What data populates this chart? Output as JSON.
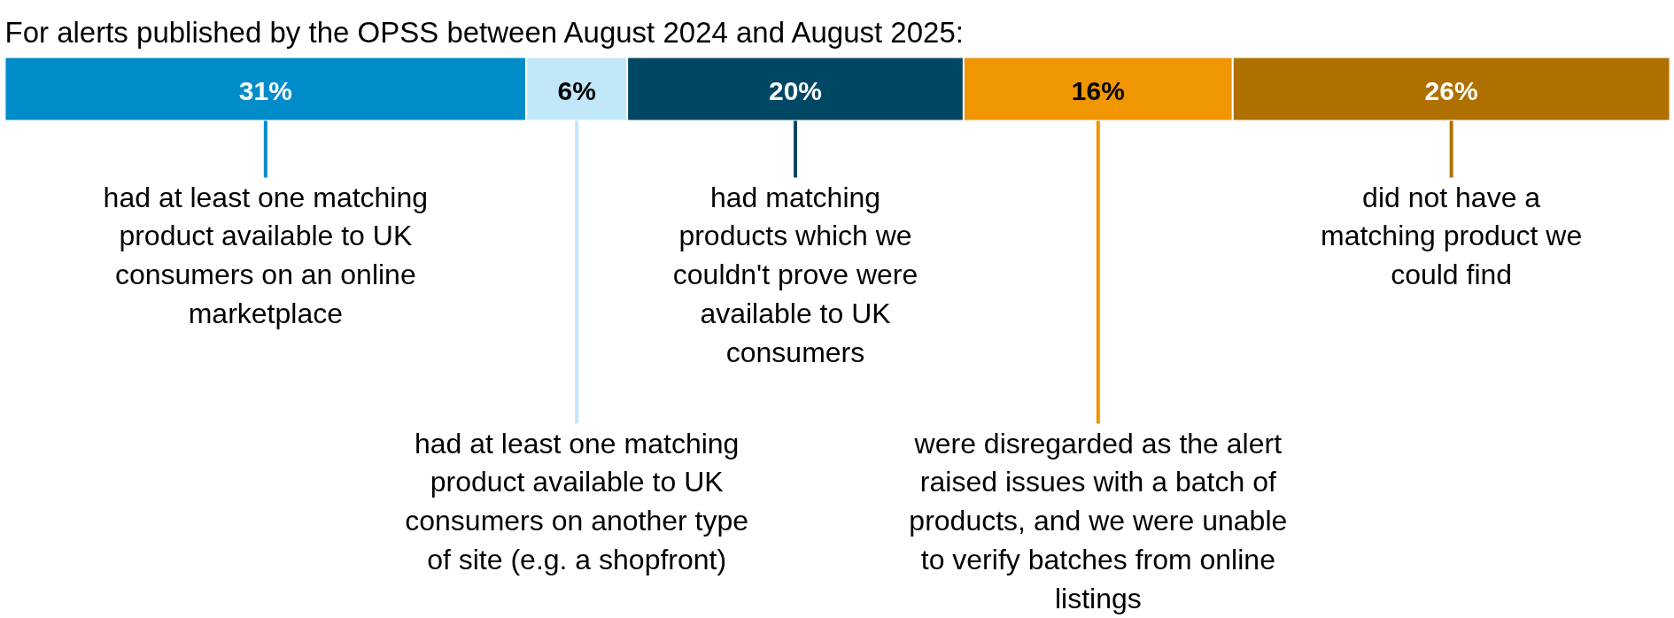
{
  "chart_data": {
    "type": "bar",
    "orientation": "horizontal",
    "stacked": true,
    "legend": "bottom",
    "title": "For alerts published by the OPSS between August 2024 and August 2025:",
    "categories": [
      null
    ],
    "series": [
      {
        "name": "had at least one matching product available to UK consumers on an online marketplace",
        "color": "#008cc9",
        "values": [
          31
        ],
        "value_labels": [
          "31%"
        ]
      },
      {
        "name": "had at least one matching product available to UK consumers on another type of site (e.g. a shopfront)",
        "color": "#c2e7f9",
        "values": [
          6
        ],
        "value_labels": [
          "6%"
        ]
      },
      {
        "name": "had matching products which we couldn't prove were available to UK consumers",
        "color": "#004763",
        "values": [
          20
        ],
        "value_labels": [
          "20%"
        ]
      },
      {
        "name": "were disregarded as the alert raised issues with a batch of products, and we were unable to verify batches from online listings",
        "color": "#ef9600",
        "values": [
          16
        ],
        "value_labels": [
          "16%"
        ]
      },
      {
        "name": "did not have a matching product we could find",
        "color": "#b07000",
        "values": [
          26
        ],
        "value_labels": [
          "26%"
        ]
      }
    ]
  }
}
